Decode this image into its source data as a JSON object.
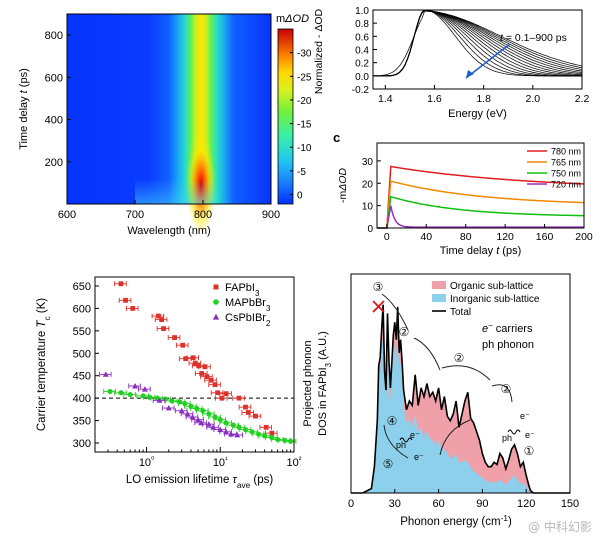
{
  "watermark": "@ 中科幻影",
  "panels": {
    "a": {
      "ylabel_main": "Time delay ",
      "ylabel_var": "t",
      "ylabel_unit": " (ps)",
      "xlabel": "Wavelength (nm)",
      "cbar_title_prefix": "m",
      "cbar_title_var": "ΔOD"
    },
    "b": {
      "ylabel": "Normalized - ΔOD",
      "xlabel": "Energy (eV)",
      "annotation_var": "t",
      "annotation_rest": " = 0.1–900 ps"
    },
    "c": {
      "letter": "c",
      "ylabel_prefix": "-m",
      "ylabel_var": "ΔOD",
      "xlabel": "Time delay t (ps)"
    },
    "d": {
      "ylabel_main": "Carrier temperature ",
      "ylabel_var": "T",
      "ylabel_sub": "c",
      "ylabel_unit": " (K)",
      "xlabel_main": "LO emission lifetime ",
      "xlabel_var": "τ",
      "xlabel_sub": "ave",
      "xlabel_unit": " (ps)"
    },
    "e": {
      "ylabel_line1": "Projected phonon",
      "ylabel_line2_prefix": "DOS in FAPbI",
      "ylabel_line2_sub": "3",
      "ylabel_line2_suffix": " (A.U.)",
      "xlabel": "Phonon energy (cm",
      "xlabel_sup": "-1",
      "xlabel_end": ")",
      "carriers_label": " carriers",
      "carrier_symbol": "e",
      "carrier_sup": "−",
      "phonon_symbol": "ph",
      "phonon_label": " phonon",
      "circle_labels": [
        "①",
        "②",
        "②",
        "②",
        "③",
        "④",
        "⑤"
      ],
      "ph_text": "ph",
      "e_text": "e⁻"
    }
  },
  "chart_data": [
    {
      "type": "heatmap",
      "panel": "a",
      "xlabel": "Wavelength (nm)",
      "ylabel": "Time delay t (ps)",
      "xlim": [
        600,
        900
      ],
      "ylim": [
        0,
        900
      ],
      "xticks": [
        "600",
        "700",
        "800",
        "900"
      ],
      "yticks": [
        "200",
        "400",
        "600",
        "800"
      ],
      "colorbar": {
        "title": "mΔOD",
        "range": [
          -35,
          2
        ],
        "ticks": [
          "-30",
          "-25",
          "-20",
          "-15",
          "-10",
          "-5",
          "0"
        ]
      },
      "band_center_nm": 797,
      "colors": {
        "low": "#0a2bff",
        "high": "#c00000"
      }
    },
    {
      "type": "line",
      "panel": "b",
      "xlabel": "Energy (eV)",
      "ylabel": "Normalized - ΔOD",
      "xlim": [
        1.35,
        2.2
      ],
      "ylim": [
        -0.2,
        1.0
      ],
      "xticks": [
        "1.4",
        "1.6",
        "1.8",
        "2.0",
        "2.2"
      ],
      "yticks": [
        "-0.2",
        "0.0",
        "0.2",
        "0.4",
        "0.6",
        "0.8",
        "1.0"
      ],
      "annotation": "t = 0.1–900 ps",
      "peak_energy_ev": 1.56,
      "n_curves": 14
    },
    {
      "type": "line",
      "panel": "c",
      "xlabel": "Time delay t (ps)",
      "ylabel": "-mΔOD",
      "xlim": [
        -10,
        200
      ],
      "ylim": [
        0,
        38
      ],
      "xticks": [
        "0",
        "40",
        "80",
        "120",
        "160",
        "200"
      ],
      "yticks": [
        "0",
        "10",
        "20",
        "30"
      ],
      "legend_position": "top-right",
      "series": [
        {
          "name": "780 nm",
          "color": "#e02020",
          "peak": 27.5,
          "final": 17
        },
        {
          "name": "765 nm",
          "color": "#f08a00",
          "peak": 21,
          "final": 10
        },
        {
          "name": "750 nm",
          "color": "#10c010",
          "peak": 14,
          "final": 5
        },
        {
          "name": "720 nm",
          "color": "#9a2fc0",
          "peak": 10,
          "final": 0.4
        }
      ]
    },
    {
      "type": "scatter",
      "panel": "d",
      "xscale": "log",
      "xlabel": "LO emission lifetime τave (ps)",
      "ylabel": "Carrier temperature Tc (K)",
      "xlim": [
        0.2,
        100
      ],
      "ylim": [
        280,
        670
      ],
      "xticks": [
        "10⁰",
        "10¹",
        "10²"
      ],
      "yticks": [
        "300",
        "350",
        "400",
        "450",
        "500",
        "550",
        "600",
        "650"
      ],
      "reference_line_y": 400,
      "legend_position": "top-right",
      "series": [
        {
          "name": "FAPbI3",
          "label_main": "FAPbI",
          "label_sub": "3",
          "color": "#e0302a",
          "marker": "square",
          "x": [
            0.45,
            0.52,
            0.65,
            1.45,
            1.6,
            1.7,
            2.4,
            3.1,
            3.4,
            4.3,
            4.6,
            5.1,
            5.6,
            6.2,
            6.6,
            7.5,
            8.5,
            9.2,
            10.5,
            12.0,
            18.0,
            22.0,
            24.0,
            30.0,
            42.0,
            50.0
          ],
          "y": [
            655,
            618,
            600,
            583,
            575,
            555,
            535,
            518,
            488,
            490,
            478,
            472,
            455,
            470,
            448,
            440,
            430,
            412,
            400,
            410,
            400,
            380,
            368,
            360,
            335,
            322
          ]
        },
        {
          "name": "MAPbBr3",
          "label_main": "MAPbBr",
          "label_sub": "3",
          "color": "#22d022",
          "marker": "circle",
          "x": [
            0.32,
            0.45,
            0.6,
            0.9,
            1.1,
            1.4,
            1.8,
            2.2,
            2.8,
            3.3,
            4.0,
            4.8,
            5.8,
            7.0,
            8.5,
            10.0,
            12.0,
            15.0,
            18.0,
            22.0,
            27.0,
            33.0,
            40.0,
            50.0,
            60.0,
            75.0,
            90.0
          ],
          "y": [
            415,
            412,
            408,
            405,
            402,
            400,
            398,
            394,
            392,
            388,
            382,
            377,
            372,
            365,
            358,
            352,
            345,
            340,
            335,
            330,
            325,
            320,
            316,
            312,
            308,
            306,
            304
          ]
        },
        {
          "name": "CsPbIBr2",
          "label_main": "CsPbIBr",
          "label_sub": "2",
          "color": "#8b2fc0",
          "marker": "triangle",
          "x": [
            0.28,
            0.7,
            0.95,
            1.5,
            2.0,
            3.0,
            3.6,
            4.2,
            5.0,
            5.5,
            7.0,
            8.0,
            10.0,
            12.0,
            14.0,
            17.0
          ],
          "y": [
            453,
            427,
            420,
            395,
            378,
            372,
            365,
            358,
            352,
            345,
            342,
            335,
            330,
            325,
            320,
            318
          ]
        }
      ]
    },
    {
      "type": "area",
      "panel": "e",
      "xlabel": "Phonon energy (cm-1)",
      "ylabel": "Projected phonon DOS in FAPbI3 (A.U.)",
      "xlim": [
        0,
        150
      ],
      "xticks": [
        "0",
        "30",
        "60",
        "90",
        "120",
        "150"
      ],
      "legend_position": "top-right",
      "series": [
        {
          "name": "Organic sub-lattice",
          "color": "#f0a0a8"
        },
        {
          "name": "Inorganic sub-lattice",
          "color": "#8cd0ec"
        },
        {
          "name": "Total",
          "color": "#000000"
        }
      ],
      "x": [
        0,
        8,
        14,
        16,
        18,
        19,
        20,
        21,
        22,
        23,
        24,
        25,
        26,
        27,
        28,
        29,
        30,
        31,
        32,
        33,
        34,
        35,
        36,
        38,
        40,
        42,
        44,
        46,
        48,
        50,
        52,
        54,
        56,
        58,
        60,
        62,
        64,
        66,
        68,
        70,
        72,
        74,
        76,
        78,
        80,
        82,
        84,
        86,
        88,
        90,
        92,
        94,
        96,
        98,
        100,
        102,
        104,
        106,
        108,
        110,
        112,
        114,
        116,
        118,
        120,
        122,
        123,
        125,
        150
      ],
      "total": [
        0,
        0,
        0.02,
        0.12,
        0.33,
        0.58,
        0.62,
        0.75,
        0.86,
        0.55,
        0.47,
        0.82,
        0.6,
        0.48,
        0.6,
        0.72,
        0.78,
        0.7,
        0.85,
        0.64,
        0.7,
        0.6,
        0.47,
        0.38,
        0.42,
        0.4,
        0.54,
        0.4,
        0.48,
        0.44,
        0.5,
        0.44,
        0.46,
        0.42,
        0.48,
        0.38,
        0.44,
        0.35,
        0.33,
        0.36,
        0.42,
        0.3,
        0.36,
        0.42,
        0.46,
        0.34,
        0.32,
        0.28,
        0.24,
        0.18,
        0.14,
        0.12,
        0.12,
        0.14,
        0.13,
        0.18,
        0.16,
        0.11,
        0.15,
        0.2,
        0.22,
        0.18,
        0.12,
        0.14,
        0.08,
        0.03,
        0.01,
        0,
        0
      ],
      "inorganic": [
        0,
        0,
        0.02,
        0.1,
        0.28,
        0.52,
        0.56,
        0.65,
        0.72,
        0.48,
        0.42,
        0.7,
        0.52,
        0.42,
        0.54,
        0.64,
        0.68,
        0.62,
        0.72,
        0.56,
        0.6,
        0.52,
        0.4,
        0.32,
        0.34,
        0.3,
        0.36,
        0.28,
        0.3,
        0.26,
        0.28,
        0.25,
        0.24,
        0.22,
        0.24,
        0.2,
        0.2,
        0.18,
        0.16,
        0.16,
        0.18,
        0.14,
        0.14,
        0.15,
        0.14,
        0.12,
        0.1,
        0.09,
        0.08,
        0.07,
        0.06,
        0.05,
        0.05,
        0.05,
        0.05,
        0.06,
        0.05,
        0.04,
        0.05,
        0.07,
        0.08,
        0.06,
        0.04,
        0.05,
        0.03,
        0.01,
        0,
        0,
        0
      ]
    }
  ]
}
